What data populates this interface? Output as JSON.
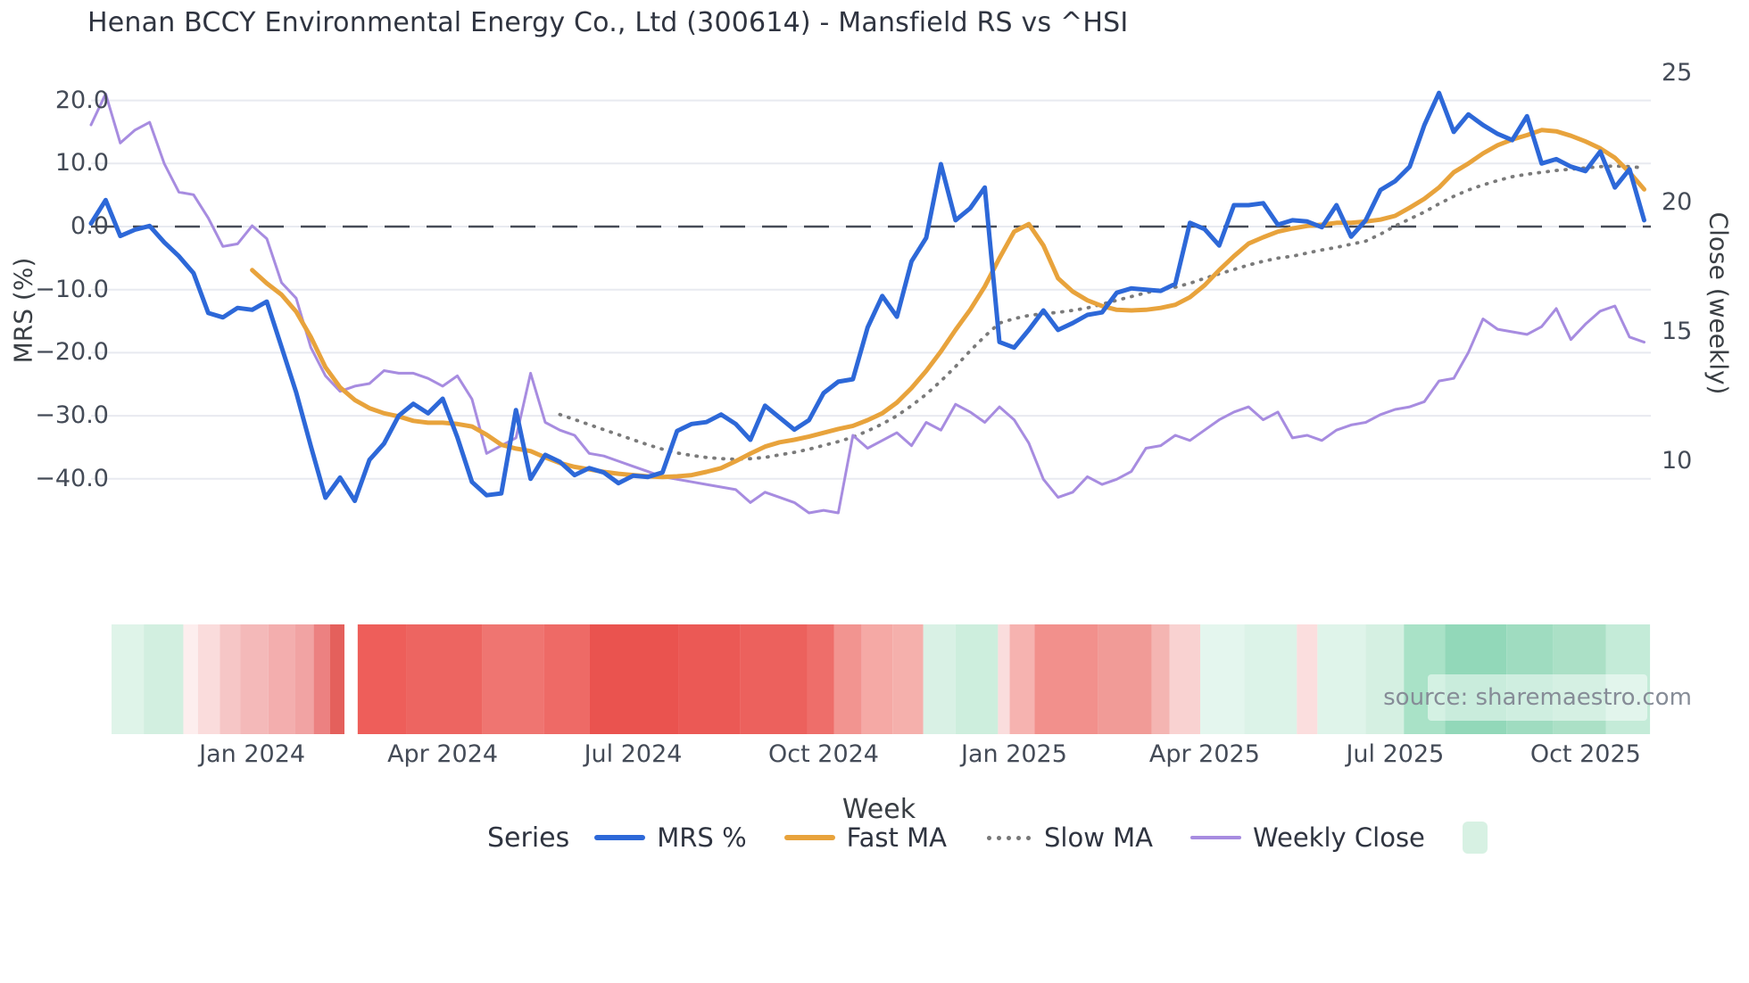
{
  "title": "Henan BCCY Environmental Energy Co., Ltd (300614) - Mansfield RS vs ^HSI",
  "source": "source: sharemaestro.com",
  "axes": {
    "left_title": "MRS (%)",
    "right_title": "Close (weekly)",
    "x_title": "Week",
    "left_ticks": [
      {
        "v": 20,
        "label": "20.0"
      },
      {
        "v": 10,
        "label": "10.0"
      },
      {
        "v": 0,
        "label": "0.0"
      },
      {
        "v": -10,
        "label": "−10.0"
      },
      {
        "v": -20,
        "label": "−20.0"
      },
      {
        "v": -30,
        "label": "−30.0"
      },
      {
        "v": -40,
        "label": "−40.0"
      }
    ],
    "right_ticks": [
      {
        "v": 25,
        "label": "25"
      },
      {
        "v": 20,
        "label": "20"
      },
      {
        "v": 15,
        "label": "15"
      },
      {
        "v": 10,
        "label": "10"
      }
    ],
    "x_ticks": [
      {
        "week": 11,
        "label": "Jan 2024"
      },
      {
        "week": 24,
        "label": "Apr 2024"
      },
      {
        "week": 37,
        "label": "Jul 2024"
      },
      {
        "week": 50,
        "label": "Oct 2024"
      },
      {
        "week": 63,
        "label": "Jan 2025"
      },
      {
        "week": 76,
        "label": "Apr 2025"
      },
      {
        "week": 89,
        "label": "Jul 2025"
      },
      {
        "week": 102,
        "label": "Oct 2025"
      }
    ]
  },
  "legend": {
    "title": "Series",
    "items": [
      {
        "name": "mrs",
        "label": "MRS %",
        "swatch": "line",
        "color": "#2d68d8"
      },
      {
        "name": "fast",
        "label": "Fast MA",
        "swatch": "line",
        "color": "#e8a33c"
      },
      {
        "name": "slow",
        "label": "Slow MA",
        "swatch": "dots",
        "color": "#7a7a7a"
      },
      {
        "name": "close",
        "label": "Weekly Close",
        "swatch": "thin",
        "color": "#a78ce0"
      },
      {
        "name": "heat",
        "label": "",
        "swatch": "square",
        "color": "#d7f1e3"
      }
    ]
  },
  "chart_data": {
    "type": "line",
    "x_unit": "week-index (0 = mid-Oct 2023, weekly points through early Nov 2025)",
    "xlabel": "Week",
    "ylabel_left": "MRS (%)",
    "ylabel_right": "Close (weekly)",
    "ylim_left": [
      -47,
      22.5
    ],
    "ylim_right": [
      7.5,
      25
    ],
    "grid": "horizontal-left-axis",
    "zero_line": {
      "value": 0,
      "axis": "left",
      "style": "dashed",
      "color": "#464b57"
    },
    "legend_position": "bottom",
    "colors": {
      "mrs": "#2d68d8",
      "fast_ma": "#e8a33c",
      "slow_ma": "#7a7a7a",
      "weekly_close": "#a78ce0",
      "grid": "#e8eaf0",
      "heat_green": "#92d8b9",
      "heat_red": "#ea534f"
    },
    "series": [
      {
        "name": "MRS %",
        "axis": "left",
        "values": [
          0.5,
          4.2,
          -1.5,
          -0.5,
          0.1,
          -2.5,
          -4.7,
          -7.4,
          -13.7,
          -14.4,
          -12.9,
          -13.2,
          -11.9,
          -19.1,
          -26.3,
          -34.8,
          -43.0,
          -39.8,
          -43.5,
          -37.0,
          -34.4,
          -30.0,
          -28.1,
          -29.6,
          -27.3,
          -33.4,
          -40.5,
          -42.6,
          -42.3,
          -29.1,
          -40.0,
          -36.2,
          -37.3,
          -39.4,
          -38.3,
          -39.0,
          -40.7,
          -39.5,
          -39.7,
          -39.0,
          -32.4,
          -31.3,
          -31.0,
          -29.8,
          -31.3,
          -33.8,
          -28.4,
          -30.3,
          -32.2,
          -30.7,
          -26.4,
          -24.6,
          -24.2,
          -16.0,
          -11.0,
          -14.3,
          -5.5,
          -1.8,
          9.9,
          1.0,
          2.9,
          6.2,
          -18.3,
          -19.2,
          -16.4,
          -13.3,
          -16.4,
          -15.3,
          -14.0,
          -13.6,
          -10.5,
          -9.8,
          -10.0,
          -10.2,
          -9.1,
          0.6,
          -0.4,
          -3.0,
          3.4,
          3.4,
          3.7,
          0.3,
          1.0,
          0.8,
          -0.1,
          3.4,
          -1.6,
          1.0,
          5.8,
          7.2,
          9.5,
          16.1,
          21.2,
          15.0,
          17.8,
          16.1,
          14.7,
          13.7,
          17.5,
          10.0,
          10.7,
          9.5,
          8.8,
          11.9,
          6.2,
          9.1,
          1.0
        ]
      },
      {
        "name": "Fast MA",
        "axis": "left",
        "values": [
          null,
          null,
          null,
          null,
          null,
          null,
          null,
          null,
          null,
          null,
          null,
          -6.9,
          -9.0,
          -10.8,
          -13.5,
          -17.5,
          -22.3,
          -25.5,
          -27.5,
          -28.8,
          -29.6,
          -30.1,
          -30.8,
          -31.1,
          -31.1,
          -31.3,
          -31.7,
          -33.0,
          -34.6,
          -35.2,
          -35.6,
          -36.6,
          -37.5,
          -38.1,
          -38.5,
          -38.9,
          -39.2,
          -39.4,
          -39.6,
          -39.7,
          -39.6,
          -39.4,
          -38.9,
          -38.3,
          -37.2,
          -36.0,
          -34.9,
          -34.2,
          -33.8,
          -33.3,
          -32.7,
          -32.1,
          -31.6,
          -30.7,
          -29.6,
          -27.9,
          -25.6,
          -22.9,
          -19.8,
          -16.4,
          -13.2,
          -9.5,
          -5.0,
          -0.8,
          0.4,
          -3.0,
          -8.2,
          -10.3,
          -11.7,
          -12.6,
          -13.2,
          -13.3,
          -13.2,
          -12.9,
          -12.4,
          -11.2,
          -9.3,
          -6.9,
          -4.7,
          -2.7,
          -1.7,
          -0.8,
          -0.3,
          0.1,
          0.3,
          0.6,
          0.6,
          0.8,
          1.1,
          1.7,
          3.0,
          4.4,
          6.2,
          8.6,
          10.0,
          11.6,
          12.9,
          13.8,
          14.5,
          15.3,
          15.1,
          14.4,
          13.5,
          12.4,
          10.9,
          8.6,
          5.9
        ]
      },
      {
        "name": "Slow MA",
        "axis": "left",
        "values": [
          null,
          null,
          null,
          null,
          null,
          null,
          null,
          null,
          null,
          null,
          null,
          null,
          null,
          null,
          null,
          null,
          null,
          null,
          null,
          null,
          null,
          null,
          null,
          null,
          null,
          null,
          null,
          null,
          null,
          null,
          null,
          null,
          -29.8,
          -30.6,
          -31.4,
          -32.2,
          -33.0,
          -33.8,
          -34.6,
          -35.3,
          -35.9,
          -36.3,
          -36.6,
          -36.8,
          -36.9,
          -36.8,
          -36.6,
          -36.2,
          -35.8,
          -35.3,
          -34.7,
          -34.1,
          -33.4,
          -32.4,
          -31.3,
          -30.0,
          -28.4,
          -26.6,
          -24.5,
          -22.2,
          -19.7,
          -17.4,
          -15.3,
          -14.6,
          -14.1,
          -13.8,
          -13.6,
          -13.3,
          -12.9,
          -12.3,
          -11.7,
          -11.1,
          -10.5,
          -10.0,
          -9.6,
          -9.0,
          -8.2,
          -7.5,
          -6.8,
          -6.1,
          -5.5,
          -5.0,
          -4.7,
          -4.2,
          -3.7,
          -3.3,
          -2.8,
          -2.3,
          -1.2,
          0.1,
          1.2,
          2.3,
          3.6,
          4.8,
          5.8,
          6.6,
          7.3,
          7.9,
          8.3,
          8.6,
          8.9,
          9.1,
          9.3,
          9.5,
          9.6,
          9.5,
          9.3
        ]
      },
      {
        "name": "Weekly Close",
        "axis": "right",
        "values": [
          23.0,
          24.2,
          22.3,
          22.8,
          23.1,
          21.5,
          20.4,
          20.3,
          19.4,
          18.3,
          18.4,
          19.1,
          18.6,
          16.9,
          16.3,
          14.4,
          13.3,
          12.7,
          12.9,
          13.0,
          13.5,
          13.4,
          13.4,
          13.2,
          12.9,
          13.3,
          12.4,
          10.3,
          10.6,
          10.9,
          13.4,
          11.5,
          11.2,
          11.0,
          10.3,
          10.2,
          10.0,
          9.8,
          9.6,
          9.4,
          9.3,
          9.2,
          9.1,
          9.0,
          8.9,
          8.4,
          8.8,
          8.6,
          8.4,
          8.0,
          8.1,
          8.0,
          11.0,
          10.5,
          10.8,
          11.1,
          10.6,
          11.5,
          11.2,
          12.2,
          11.9,
          11.5,
          12.1,
          11.6,
          10.7,
          9.3,
          8.6,
          8.8,
          9.4,
          9.1,
          9.3,
          9.6,
          10.5,
          10.6,
          11.0,
          10.8,
          11.2,
          11.6,
          11.9,
          12.1,
          11.6,
          11.9,
          10.9,
          11.0,
          10.8,
          11.2,
          11.4,
          11.5,
          11.8,
          12.0,
          12.1,
          12.3,
          13.1,
          13.2,
          14.2,
          15.5,
          15.1,
          15.0,
          14.9,
          15.2,
          15.9,
          14.7,
          15.3,
          15.8,
          16.0,
          14.8,
          14.6
        ]
      }
    ],
    "heatmap_strip": {
      "description": "weekly relative-strength heat band under chart",
      "bands": [
        {
          "w0": 1.4,
          "w1": 3.6,
          "color": "#dff4e9"
        },
        {
          "w0": 3.6,
          "w1": 6.3,
          "color": "#d2efe0"
        },
        {
          "w0": 6.3,
          "w1": 7.3,
          "color": "#fdeeee"
        },
        {
          "w0": 7.3,
          "w1": 8.8,
          "color": "#fadcdc"
        },
        {
          "w0": 8.8,
          "w1": 10.2,
          "color": "#f6c6c6"
        },
        {
          "w0": 10.2,
          "w1": 12.1,
          "color": "#f4b9b9"
        },
        {
          "w0": 12.1,
          "w1": 13.9,
          "color": "#f3aeae"
        },
        {
          "w0": 13.9,
          "w1": 15.2,
          "color": "#f1a3a3"
        },
        {
          "w0": 15.2,
          "w1": 16.3,
          "color": "#ec8181"
        },
        {
          "w0": 16.3,
          "w1": 17.3,
          "color": "#e4605c"
        },
        {
          "w0": 17.3,
          "w1": 18.2,
          "color": "#ffffff"
        },
        {
          "w0": 18.2,
          "w1": 21.5,
          "color": "#ee5e5a"
        },
        {
          "w0": 21.5,
          "w1": 26.7,
          "color": "#ed6561"
        },
        {
          "w0": 26.7,
          "w1": 30.9,
          "color": "#ef7571"
        },
        {
          "w0": 30.9,
          "w1": 34.0,
          "color": "#ee6a66"
        },
        {
          "w0": 34.0,
          "w1": 40.1,
          "color": "#ea534f"
        },
        {
          "w0": 40.1,
          "w1": 44.3,
          "color": "#eb5955"
        },
        {
          "w0": 44.3,
          "w1": 48.9,
          "color": "#ec615d"
        },
        {
          "w0": 48.9,
          "w1": 50.7,
          "color": "#ee6e6a"
        },
        {
          "w0": 50.7,
          "w1": 52.6,
          "color": "#f29490"
        },
        {
          "w0": 52.6,
          "w1": 54.7,
          "color": "#f5a9a5"
        },
        {
          "w0": 54.7,
          "w1": 56.8,
          "color": "#f5b0ac"
        },
        {
          "w0": 56.8,
          "w1": 59.0,
          "color": "#d9f1e5"
        },
        {
          "w0": 59.0,
          "w1": 61.9,
          "color": "#cdeedd"
        },
        {
          "w0": 61.9,
          "w1": 62.7,
          "color": "#fadddd"
        },
        {
          "w0": 62.7,
          "w1": 64.4,
          "color": "#f6b3b0"
        },
        {
          "w0": 64.4,
          "w1": 68.7,
          "color": "#f2908c"
        },
        {
          "w0": 68.7,
          "w1": 72.4,
          "color": "#f19b97"
        },
        {
          "w0": 72.4,
          "w1": 73.6,
          "color": "#f4b5b2"
        },
        {
          "w0": 73.6,
          "w1": 75.7,
          "color": "#f9d2d1"
        },
        {
          "w0": 75.7,
          "w1": 78.7,
          "color": "#e4f6ee"
        },
        {
          "w0": 78.7,
          "w1": 82.3,
          "color": "#dcf3e8"
        },
        {
          "w0": 82.3,
          "w1": 83.7,
          "color": "#fbdede"
        },
        {
          "w0": 83.7,
          "w1": 87.0,
          "color": "#dff4ea"
        },
        {
          "w0": 87.0,
          "w1": 89.6,
          "color": "#d5f0e2"
        },
        {
          "w0": 89.6,
          "w1": 92.4,
          "color": "#a9e2c7"
        },
        {
          "w0": 92.4,
          "w1": 96.6,
          "color": "#92d8b9"
        },
        {
          "w0": 96.6,
          "w1": 99.8,
          "color": "#9fdcc0"
        },
        {
          "w0": 99.8,
          "w1": 103.4,
          "color": "#abe0c6"
        },
        {
          "w0": 103.4,
          "w1": 106.4,
          "color": "#c4ebd8"
        }
      ]
    }
  }
}
